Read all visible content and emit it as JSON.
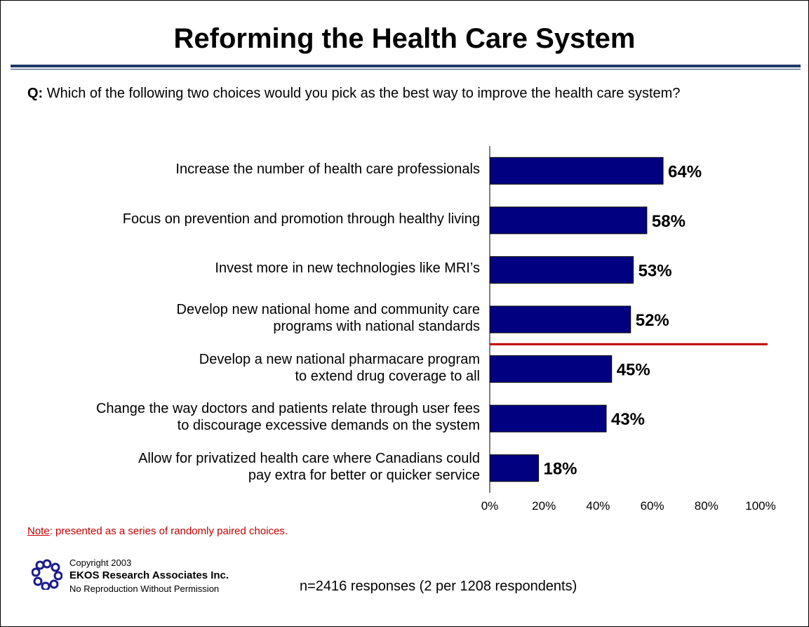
{
  "page": {
    "title": "Reforming the Health Care System",
    "question_prefix": "Q:",
    "question_text": " Which of the following two choices would you pick as the best way to improve the health care system?",
    "note_prefix": "Note",
    "note_text": ": presented as a series of randomly paired choices.",
    "copyright_line1": "Copyright 2003",
    "copyright_line2": "EKOS Research Associates Inc.",
    "copyright_line3": "No Reproduction Without Permission",
    "sample_size": "n=2416 responses (2 per 1208 respondents)"
  },
  "labels": [
    [
      "Increase the number of health care professionals"
    ],
    [
      "Focus on prevention and promotion through healthy living"
    ],
    [
      "Invest more in new technologies like MRI’s"
    ],
    [
      "Develop new national home and community care",
      "programs with national standards"
    ],
    [
      "Develop a new national pharmacare program",
      "to extend drug coverage to all"
    ],
    [
      "Change the way doctors and patients relate through user fees",
      "to discourage excessive demands on the system"
    ],
    [
      "Allow for privatized health care where Canadians could",
      "pay extra for better or quicker service"
    ]
  ],
  "chart_data": {
    "type": "bar",
    "orientation": "horizontal",
    "categories": [
      "Increase the number of health care professionals",
      "Focus on prevention and promotion through healthy living",
      "Invest more in new technologies like MRI’s",
      "Develop new national home and community care programs with national standards",
      "Develop a new national pharmacare program to extend drug coverage to all",
      "Change the way doctors and patients relate through user fees to discourage excessive demands on the system",
      "Allow for privatized health care where Canadians could pay extra for better or quicker service"
    ],
    "values": [
      64,
      58,
      53,
      52,
      45,
      43,
      18
    ],
    "data_labels": [
      "64%",
      "58%",
      "53%",
      "52%",
      "45%",
      "43%",
      "18%"
    ],
    "xlim": [
      0,
      100
    ],
    "x_ticks": [
      0,
      20,
      40,
      60,
      80,
      100
    ],
    "x_tick_labels": [
      "0%",
      "20%",
      "40%",
      "60%",
      "80%",
      "100%"
    ],
    "separator_after_category_index": 3,
    "bar_color": "#000080",
    "separator_color": "#c00000",
    "grid": false
  },
  "colors": {
    "bar": "#000080",
    "rule": "#1f3a6a",
    "note": "#c00000",
    "separator": "#c00000"
  }
}
